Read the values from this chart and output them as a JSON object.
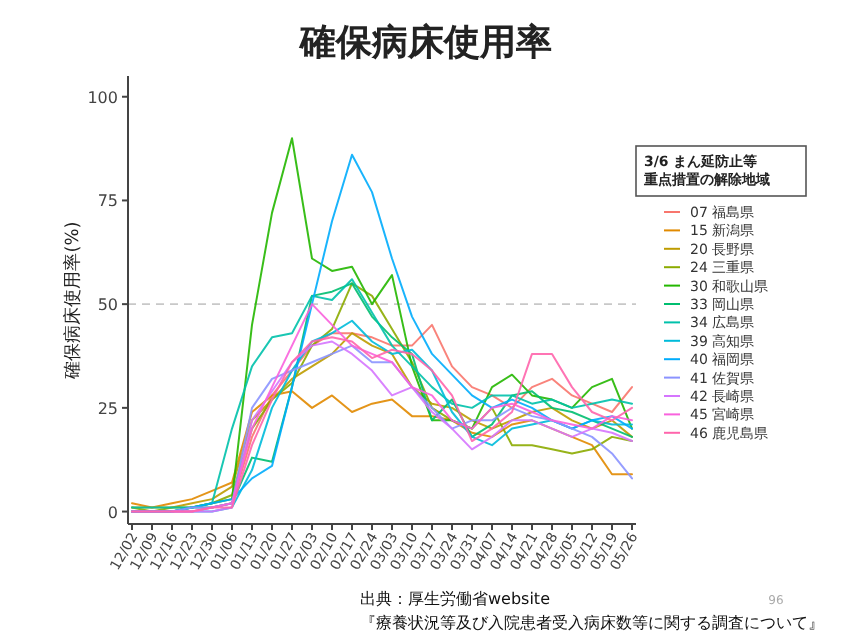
{
  "chart_data": {
    "type": "line",
    "title": "確保病床使用率",
    "ylabel": "確保病床使用率(%)",
    "legend_title": "3/6  まん延防止等重点措置の解除地域",
    "categories": [
      "12/02",
      "12/09",
      "12/16",
      "12/23",
      "12/30",
      "01/06",
      "01/13",
      "01/20",
      "01/27",
      "02/03",
      "02/10",
      "02/17",
      "02/24",
      "03/03",
      "03/10",
      "03/17",
      "03/24",
      "03/31",
      "04/07",
      "04/14",
      "04/21",
      "04/28",
      "05/05",
      "05/12",
      "05/19",
      "05/26"
    ],
    "ylim": [
      -3,
      105
    ],
    "yticks": [
      0,
      25,
      50,
      75,
      100
    ],
    "grid": false,
    "legend": "right",
    "marker": "none",
    "line_style": "solid",
    "ref_lines": [
      {
        "axis": "y",
        "value": 50,
        "label": null,
        "color": "#c8c8c8",
        "line_style": "dashed"
      }
    ],
    "series": [
      {
        "name": "07 福島県",
        "color": "#f8766d",
        "values": [
          null,
          null,
          0,
          0,
          1,
          2,
          18,
          28,
          34,
          40,
          43,
          43,
          42,
          40,
          40,
          45,
          35,
          30,
          28,
          25,
          30,
          32,
          28,
          26,
          24,
          30
        ]
      },
      {
        "name": "15 新潟県",
        "color": "#e18a00",
        "values": [
          2,
          1,
          2,
          3,
          5,
          7,
          24,
          28,
          29,
          25,
          28,
          24,
          26,
          27,
          23,
          23,
          22,
          19,
          18,
          21,
          22,
          20,
          18,
          16,
          9,
          9
        ]
      },
      {
        "name": "20 長野県",
        "color": "#be9c00",
        "values": [
          1,
          1,
          1,
          2,
          3,
          6,
          22,
          27,
          32,
          35,
          38,
          43,
          40,
          38,
          30,
          26,
          25,
          22,
          20,
          22,
          24,
          25,
          22,
          20,
          22,
          18
        ]
      },
      {
        "name": "24 三重県",
        "color": "#8cab00",
        "values": [
          1,
          0,
          1,
          1,
          2,
          4,
          20,
          27,
          31,
          40,
          44,
          55,
          52,
          44,
          36,
          25,
          22,
          20,
          25,
          16,
          16,
          15,
          14,
          15,
          18,
          17
        ]
      },
      {
        "name": "30 和歌山県",
        "color": "#24b700",
        "values": [
          0,
          0,
          0,
          1,
          2,
          3,
          45,
          72,
          90,
          61,
          58,
          59,
          50,
          57,
          35,
          22,
          22,
          20,
          30,
          33,
          28,
          27,
          25,
          30,
          32,
          20
        ]
      },
      {
        "name": "33 岡山県",
        "color": "#00be70",
        "values": [
          0,
          0,
          0,
          1,
          1,
          2,
          13,
          12,
          30,
          52,
          53,
          55,
          47,
          42,
          38,
          22,
          27,
          18,
          21,
          28,
          29,
          25,
          24,
          22,
          20,
          18
        ]
      },
      {
        "name": "34 広島県",
        "color": "#00c1ab",
        "values": [
          1,
          1,
          1,
          1,
          2,
          20,
          35,
          42,
          43,
          52,
          51,
          56,
          48,
          40,
          35,
          30,
          26,
          25,
          28,
          28,
          26,
          27,
          25,
          26,
          27,
          26
        ]
      },
      {
        "name": "39 高知県",
        "color": "#00bbda",
        "values": [
          0,
          0,
          0,
          0,
          0,
          1,
          10,
          25,
          34,
          41,
          43,
          46,
          41,
          38,
          39,
          34,
          24,
          18,
          16,
          20,
          21,
          22,
          20,
          22,
          21,
          21
        ]
      },
      {
        "name": "40 福岡県",
        "color": "#00acfc",
        "values": [
          0,
          0,
          0,
          1,
          2,
          3,
          8,
          11,
          30,
          50,
          70,
          86,
          77,
          61,
          47,
          38,
          33,
          28,
          25,
          27,
          25,
          22,
          20,
          22,
          23,
          20
        ]
      },
      {
        "name": "41 佐賀県",
        "color": "#8b93ff",
        "values": [
          0,
          0,
          0,
          1,
          1,
          2,
          25,
          32,
          34,
          36,
          38,
          40,
          36,
          36,
          30,
          25,
          20,
          22,
          22,
          25,
          23,
          22,
          20,
          18,
          14,
          8
        ]
      },
      {
        "name": "42 長崎県",
        "color": "#d575fe",
        "values": [
          null,
          null,
          0,
          0,
          0,
          1,
          22,
          29,
          36,
          40,
          41,
          38,
          34,
          28,
          30,
          24,
          20,
          15,
          18,
          22,
          22,
          20,
          18,
          20,
          19,
          17
        ]
      },
      {
        "name": "45 宮崎県",
        "color": "#f962dd",
        "values": [
          0,
          0,
          0,
          0,
          1,
          2,
          20,
          30,
          40,
          50,
          45,
          40,
          38,
          36,
          30,
          28,
          22,
          20,
          25,
          26,
          24,
          22,
          21,
          20,
          23,
          22
        ]
      },
      {
        "name": "46 鹿児島県",
        "color": "#ff65ac",
        "values": [
          0,
          0,
          0,
          0,
          1,
          1,
          16,
          27,
          36,
          41,
          42,
          41,
          37,
          39,
          38,
          34,
          28,
          17,
          20,
          24,
          38,
          38,
          30,
          24,
          22,
          25
        ]
      }
    ],
    "annotations": [
      "出典：厚生労働省website",
      "『療養状況等及び入院患者受入病床数等に関する調査について』",
      "96"
    ]
  }
}
